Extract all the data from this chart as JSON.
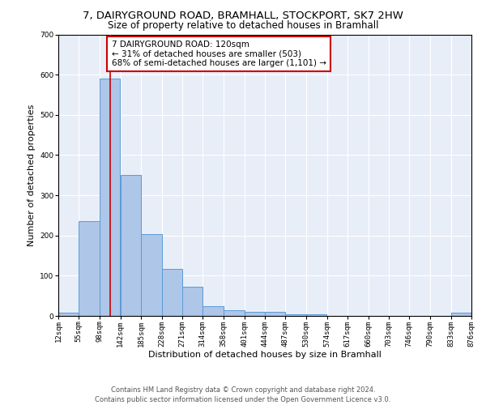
{
  "title1": "7, DAIRYGROUND ROAD, BRAMHALL, STOCKPORT, SK7 2HW",
  "title2": "Size of property relative to detached houses in Bramhall",
  "xlabel": "Distribution of detached houses by size in Bramhall",
  "ylabel": "Number of detached properties",
  "bar_color": "#aec6e8",
  "bar_edge_color": "#5b9bd5",
  "annotation_line_color": "#cc0000",
  "annotation_box_color": "#cc0000",
  "annotation_text": "7 DAIRYGROUND ROAD: 120sqm\n← 31% of detached houses are smaller (503)\n68% of semi-detached houses are larger (1,101) →",
  "property_size_sqm": 120,
  "bin_edges": [
    12,
    55,
    98,
    142,
    185,
    228,
    271,
    314,
    358,
    401,
    444,
    487,
    530,
    574,
    617,
    660,
    703,
    746,
    790,
    833,
    876
  ],
  "bar_heights": [
    8,
    235,
    590,
    350,
    203,
    117,
    73,
    25,
    15,
    10,
    10,
    5,
    5,
    0,
    0,
    0,
    0,
    0,
    0,
    8
  ],
  "ylim": [
    0,
    700
  ],
  "yticks": [
    0,
    100,
    200,
    300,
    400,
    500,
    600,
    700
  ],
  "background_color": "#e8eef8",
  "footer_text": "Contains HM Land Registry data © Crown copyright and database right 2024.\nContains public sector information licensed under the Open Government Licence v3.0.",
  "title1_fontsize": 9.5,
  "title2_fontsize": 8.5,
  "annotation_fontsize": 7.5,
  "axis_label_fontsize": 8,
  "tick_fontsize": 6.5,
  "footer_fontsize": 6
}
